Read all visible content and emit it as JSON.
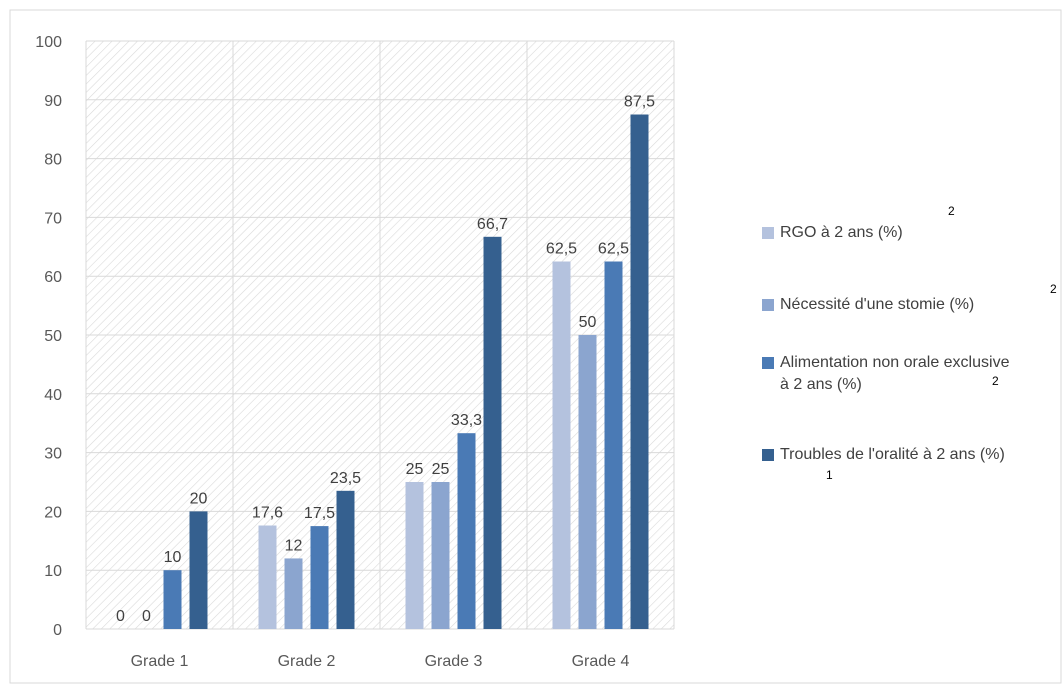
{
  "chart_data": {
    "type": "bar",
    "categories": [
      "Grade 1",
      "Grade 2",
      "Grade 3",
      "Grade 4"
    ],
    "series": [
      {
        "name": "RGO à 2 ans (%)",
        "values": [
          0,
          17.6,
          25,
          62.5
        ],
        "labels": [
          "0",
          "17,6",
          "25",
          "62,5"
        ],
        "color": "#b4c2de",
        "sup": "2"
      },
      {
        "name": "Nécessité d'une stomie (%)",
        "values": [
          0,
          12,
          25,
          50
        ],
        "labels": [
          "0",
          "12",
          "25",
          "50"
        ],
        "color": "#8ba5cf",
        "sup": "2"
      },
      {
        "name": "Alimentation non orale exclusive à 2 ans (%)",
        "values": [
          10,
          17.5,
          33.3,
          62.5
        ],
        "labels": [
          "10",
          "17,5",
          "33,3",
          "62,5"
        ],
        "color": "#4a7ab5",
        "sup": "2"
      },
      {
        "name": "Troubles de l'oralité à 2 ans (%)",
        "values": [
          20,
          23.5,
          66.7,
          87.5
        ],
        "labels": [
          "20",
          "23,5",
          "66,7",
          "87,5"
        ],
        "color": "#35608f",
        "sup": "1"
      }
    ],
    "ylim": [
      0,
      100
    ],
    "yticks": [
      "0",
      "10",
      "20",
      "30",
      "40",
      "50",
      "60",
      "70",
      "80",
      "90",
      "100"
    ],
    "grid": true,
    "legend": "right"
  }
}
